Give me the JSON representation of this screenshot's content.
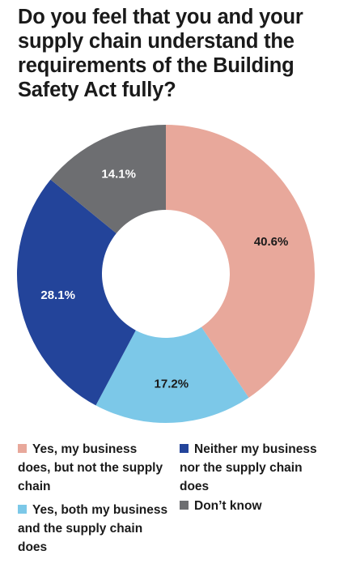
{
  "chart_data": {
    "type": "pie",
    "variant": "donut",
    "title": "Do you feel that you and your supply chain understand the requirements of the Building Safety Act fully?",
    "slices": [
      {
        "label": "Yes, my business does, but not the supply chain",
        "value": 40.6,
        "value_label": "40.6%",
        "color": "#e8a89b",
        "text_color": "#1a1a1a"
      },
      {
        "label": "Yes, both my business and the supply chain does",
        "value": 17.2,
        "value_label": "17.2%",
        "color": "#7cc8e8",
        "text_color": "#1a1a1a"
      },
      {
        "label": "Neither my business nor the supply chain does",
        "value": 28.1,
        "value_label": "28.1%",
        "color": "#23449a",
        "text_color": "#ffffff"
      },
      {
        "label": "Don’t know",
        "value": 14.1,
        "value_label": "14.1%",
        "color": "#6d6e71",
        "text_color": "#ffffff"
      }
    ],
    "start_angle_deg": 0,
    "direction": "clockwise",
    "legend_position": "bottom"
  }
}
